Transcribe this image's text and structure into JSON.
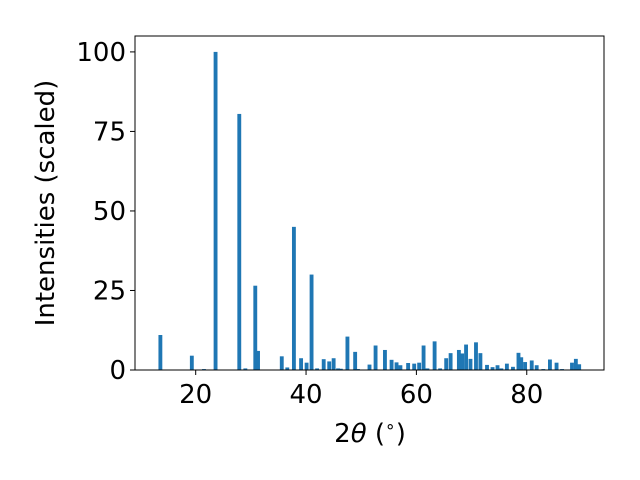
{
  "chart_data": {
    "type": "bar",
    "title": "",
    "xlabel_parts": [
      "2",
      "θ",
      " (",
      "∘",
      ")"
    ],
    "ylabel": "Intensities (scaled)",
    "xlim": [
      9,
      94
    ],
    "ylim": [
      0,
      105
    ],
    "xticks": [
      20,
      40,
      60,
      80
    ],
    "yticks": [
      0,
      25,
      50,
      75,
      100
    ],
    "xtick_labels": [
      "20",
      "40",
      "60",
      "80"
    ],
    "ytick_labels": [
      "0",
      "25",
      "50",
      "75",
      "100"
    ],
    "bar_color": "#1f77b4",
    "grid": false,
    "x": [
      13.6,
      19.3,
      21.5,
      23.6,
      27.9,
      29.0,
      30.8,
      31.3,
      35.6,
      36.6,
      37.8,
      39.1,
      40.1,
      41.0,
      42.0,
      43.2,
      44.2,
      45.0,
      45.8,
      46.3,
      47.5,
      48.9,
      49.4,
      51.5,
      52.6,
      54.3,
      55.5,
      56.4,
      57.1,
      58.5,
      59.6,
      60.5,
      61.3,
      62.0,
      63.3,
      64.3,
      65.4,
      66.2,
      67.7,
      68.3,
      69.0,
      69.8,
      70.8,
      71.6,
      72.8,
      73.8,
      74.7,
      75.4,
      76.4,
      77.5,
      78.5,
      79.0,
      79.7,
      80.9,
      81.8,
      83.0,
      84.2,
      85.4,
      86.4,
      88.2,
      88.9,
      89.5
    ],
    "values": [
      11,
      4.5,
      0.3,
      100,
      80.5,
      0.5,
      26.5,
      6,
      4.3,
      0.8,
      45,
      3.7,
      2.3,
      30,
      0.5,
      3.4,
      2.7,
      3.7,
      0.5,
      0.4,
      10.5,
      5.7,
      0.3,
      1.7,
      7.7,
      6.3,
      3.2,
      2.4,
      1.5,
      2.2,
      2,
      2.3,
      7.7,
      0.5,
      9,
      0.5,
      3.7,
      5.3,
      6.3,
      5.2,
      8,
      3.5,
      8.7,
      5.3,
      1.6,
      0.9,
      1.5,
      0.5,
      2,
      1,
      5.4,
      4,
      2.5,
      3,
      1.5,
      0.3,
      3.3,
      2.3,
      0.3,
      2.3,
      3.5,
      1.8
    ]
  }
}
